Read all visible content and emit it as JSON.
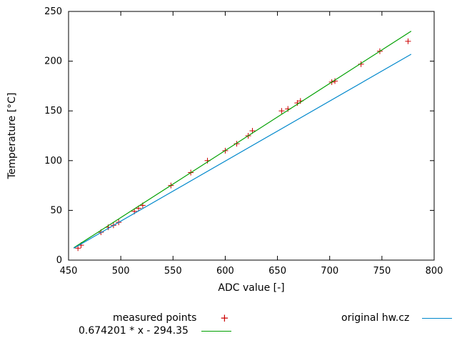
{
  "chart_data": {
    "type": "scatter",
    "title": "",
    "xlabel": "ADC value [-]",
    "ylabel": "Temperature [°C]",
    "xlim": [
      450,
      800
    ],
    "ylim": [
      0,
      250
    ],
    "xticks": [
      450,
      500,
      550,
      600,
      650,
      700,
      750,
      800
    ],
    "yticks": [
      0,
      50,
      100,
      150,
      200,
      250
    ],
    "grid": false,
    "legend_position": "below-plot",
    "axis_color": "#000000",
    "series": [
      {
        "name": "measured points",
        "type": "points",
        "marker": "plus",
        "color": "#cc0000",
        "points": [
          [
            459,
            12
          ],
          [
            462,
            15
          ],
          [
            481,
            28
          ],
          [
            488,
            33
          ],
          [
            493,
            35
          ],
          [
            498,
            38
          ],
          [
            513,
            49
          ],
          [
            517,
            52
          ],
          [
            521,
            55
          ],
          [
            548,
            75
          ],
          [
            567,
            88
          ],
          [
            583,
            100
          ],
          [
            600,
            110
          ],
          [
            611,
            117
          ],
          [
            622,
            125
          ],
          [
            626,
            130
          ],
          [
            654,
            150
          ],
          [
            660,
            152
          ],
          [
            669,
            158
          ],
          [
            672,
            160
          ],
          [
            702,
            179
          ],
          [
            705,
            180
          ],
          [
            730,
            197
          ],
          [
            748,
            210
          ],
          [
            775,
            220
          ]
        ]
      },
      {
        "name": "0.674201 * x - 294.35",
        "type": "line",
        "color": "#00a000",
        "slope": 0.674201,
        "intercept": -294.35,
        "x_range": [
          455,
          778
        ]
      },
      {
        "name": "original hw.cz",
        "type": "line",
        "color": "#0088cc",
        "slope": 0.6037,
        "intercept": -262.7,
        "x_range": [
          455,
          778
        ]
      }
    ]
  }
}
